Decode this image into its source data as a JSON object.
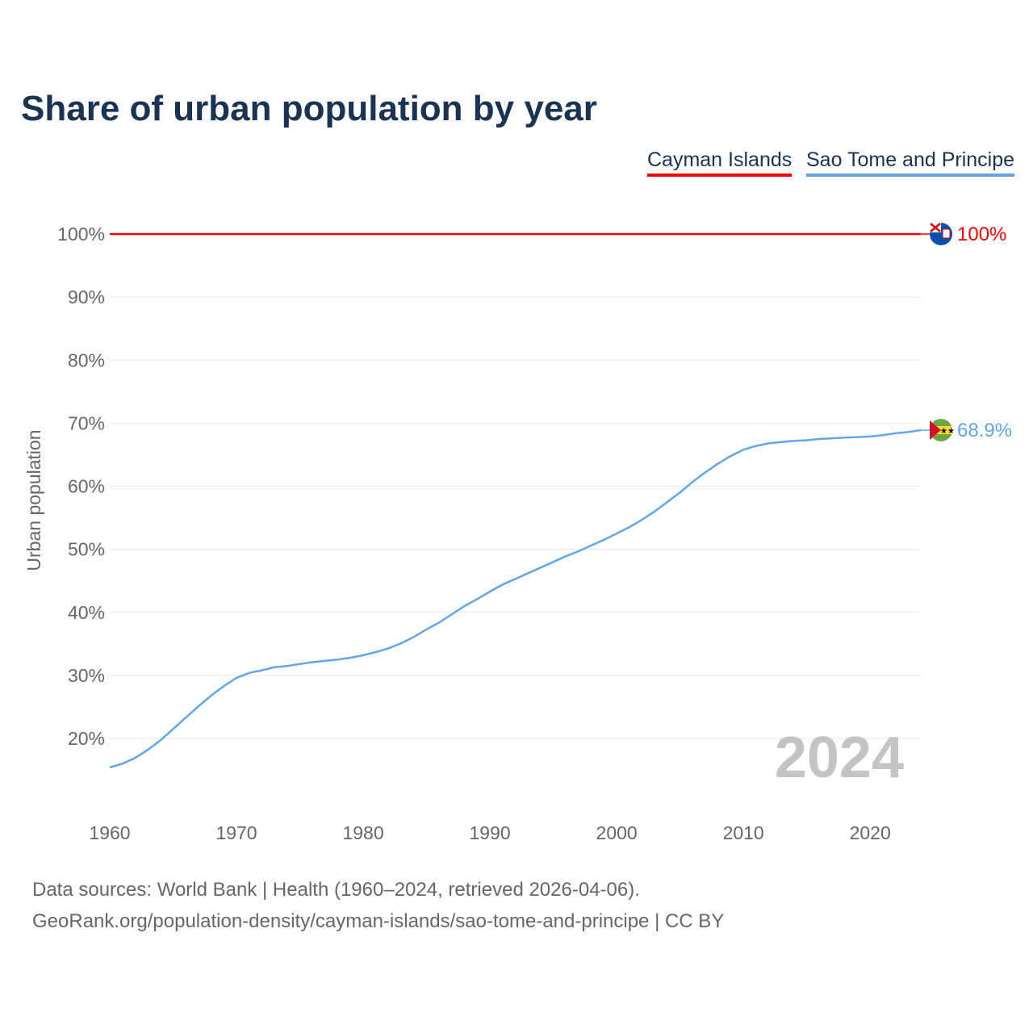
{
  "chart_data": {
    "type": "line",
    "title": "Share of urban population by year",
    "ylabel": "Urban population",
    "xlabel": "",
    "xlim": [
      1960,
      2024
    ],
    "ylim": [
      10,
      100
    ],
    "x_ticks": [
      "1960",
      "1970",
      "1980",
      "1990",
      "2000",
      "2010",
      "2020"
    ],
    "y_ticks": [
      "20%",
      "30%",
      "40%",
      "50%",
      "60%",
      "70%",
      "80%",
      "90%",
      "100%"
    ],
    "y_tick_values": [
      20,
      30,
      40,
      50,
      60,
      70,
      80,
      90,
      100
    ],
    "grid": true,
    "legend_position": "top-right",
    "year_watermark": "2024",
    "x": [
      1960,
      1961,
      1962,
      1963,
      1964,
      1965,
      1966,
      1967,
      1968,
      1969,
      1970,
      1971,
      1972,
      1973,
      1974,
      1975,
      1976,
      1977,
      1978,
      1979,
      1980,
      1981,
      1982,
      1983,
      1984,
      1985,
      1986,
      1987,
      1988,
      1989,
      1990,
      1991,
      1992,
      1993,
      1994,
      1995,
      1996,
      1997,
      1998,
      1999,
      2000,
      2001,
      2002,
      2003,
      2004,
      2005,
      2006,
      2007,
      2008,
      2009,
      2010,
      2011,
      2012,
      2013,
      2014,
      2015,
      2016,
      2017,
      2018,
      2019,
      2020,
      2021,
      2022,
      2023,
      2024
    ],
    "series": [
      {
        "name": "Cayman Islands",
        "color": "#ff0000",
        "end_label": "100%",
        "values": [
          100,
          100,
          100,
          100,
          100,
          100,
          100,
          100,
          100,
          100,
          100,
          100,
          100,
          100,
          100,
          100,
          100,
          100,
          100,
          100,
          100,
          100,
          100,
          100,
          100,
          100,
          100,
          100,
          100,
          100,
          100,
          100,
          100,
          100,
          100,
          100,
          100,
          100,
          100,
          100,
          100,
          100,
          100,
          100,
          100,
          100,
          100,
          100,
          100,
          100,
          100,
          100,
          100,
          100,
          100,
          100,
          100,
          100,
          100,
          100,
          100,
          100,
          100,
          100,
          100
        ]
      },
      {
        "name": "Sao Tome and Principe",
        "color": "#63a6e8",
        "end_label": "68.9%",
        "values": [
          15.4,
          16.0,
          16.9,
          18.2,
          19.7,
          21.5,
          23.3,
          25.1,
          26.8,
          28.3,
          29.6,
          30.4,
          30.8,
          31.3,
          31.5,
          31.8,
          32.1,
          32.3,
          32.5,
          32.8,
          33.2,
          33.7,
          34.3,
          35.1,
          36.1,
          37.3,
          38.4,
          39.7,
          41.0,
          42.1,
          43.3,
          44.4,
          45.3,
          46.2,
          47.1,
          48.0,
          48.9,
          49.7,
          50.6,
          51.5,
          52.5,
          53.5,
          54.7,
          56.0,
          57.5,
          59.0,
          60.7,
          62.2,
          63.6,
          64.8,
          65.8,
          66.4,
          66.8,
          67.0,
          67.2,
          67.3,
          67.5,
          67.6,
          67.7,
          67.8,
          67.9,
          68.1,
          68.4,
          68.6,
          68.9
        ]
      }
    ]
  },
  "sources": {
    "line1": "Data sources: World Bank | Health (1960–2024, retrieved 2026-04-06).",
    "line2": "GeoRank.org/population-density/cayman-islands/sao-tome-and-principe | CC BY"
  }
}
